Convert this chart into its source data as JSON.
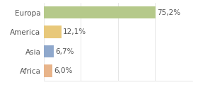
{
  "categories": [
    "Africa",
    "Asia",
    "America",
    "Europa"
  ],
  "values": [
    6.0,
    6.7,
    12.1,
    75.2
  ],
  "bar_colors": [
    "#e8b48a",
    "#8fa8cc",
    "#e8c87a",
    "#b5c98a"
  ],
  "labels": [
    "6,0%",
    "6,7%",
    "12,1%",
    "75,2%"
  ],
  "xlim": [
    0,
    100
  ],
  "background_color": "#ffffff",
  "bar_height": 0.65,
  "label_fontsize": 7.5,
  "tick_fontsize": 7.5,
  "grid_color": "#dddddd",
  "text_color": "#555555"
}
